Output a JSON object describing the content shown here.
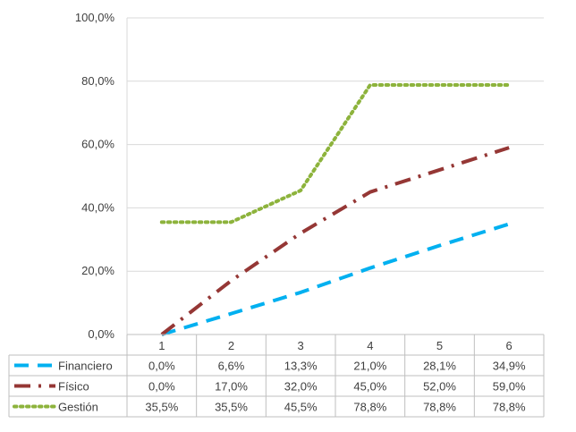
{
  "chart_data": {
    "type": "line",
    "categories": [
      "1",
      "2",
      "3",
      "4",
      "5",
      "6"
    ],
    "y_ticks": [
      "0,0%",
      "20,0%",
      "40,0%",
      "60,0%",
      "80,0%",
      "100,0%"
    ],
    "ylim": [
      0,
      100
    ],
    "grid": "horizontal",
    "legend": "data-table",
    "series": [
      {
        "name": "Financiero",
        "color": "#00B0F0",
        "style": "dashed",
        "values": [
          0.0,
          6.6,
          13.3,
          21.0,
          28.1,
          34.9
        ],
        "labels": [
          "0,0%",
          "6,6%",
          "13,3%",
          "21,0%",
          "28,1%",
          "34,9%"
        ]
      },
      {
        "name": "Físico",
        "color": "#953735",
        "style": "dash-dot",
        "values": [
          0.0,
          17.0,
          32.0,
          45.0,
          52.0,
          59.0
        ],
        "labels": [
          "0,0%",
          "17,0%",
          "32,0%",
          "45,0%",
          "52,0%",
          "59,0%"
        ]
      },
      {
        "name": "Gestión",
        "color": "#8DB33C",
        "style": "dotted",
        "values": [
          35.5,
          35.5,
          45.5,
          78.8,
          78.8,
          78.8
        ],
        "labels": [
          "35,5%",
          "35,5%",
          "45,5%",
          "78,8%",
          "78,8%",
          "78,8%"
        ]
      }
    ]
  }
}
